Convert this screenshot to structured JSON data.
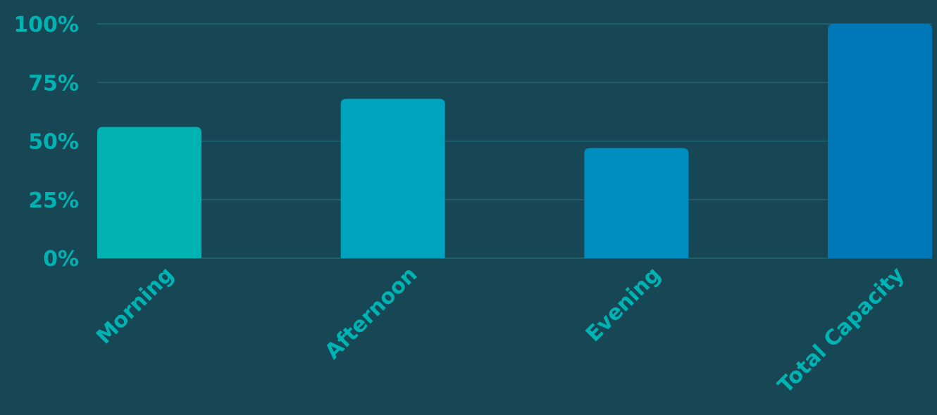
{
  "chart_data": {
    "type": "bar",
    "categories": [
      "Morning",
      "Afternoon",
      "Evening",
      "Total Capacity"
    ],
    "values": [
      56,
      68,
      47,
      100
    ],
    "ylim": [
      0,
      100
    ],
    "yticks": [
      0,
      25,
      50,
      75,
      100
    ],
    "ytick_labels": [
      "0%",
      "25%",
      "50%",
      "75%",
      "100%"
    ],
    "grid": true,
    "legend": "none",
    "colors": {
      "background": "#174755",
      "text": "#00B3B3",
      "gridline": "#1F6672",
      "bars": [
        "#00B3B3",
        "#00A3BD",
        "#008DBF",
        "#0077B6"
      ]
    }
  }
}
